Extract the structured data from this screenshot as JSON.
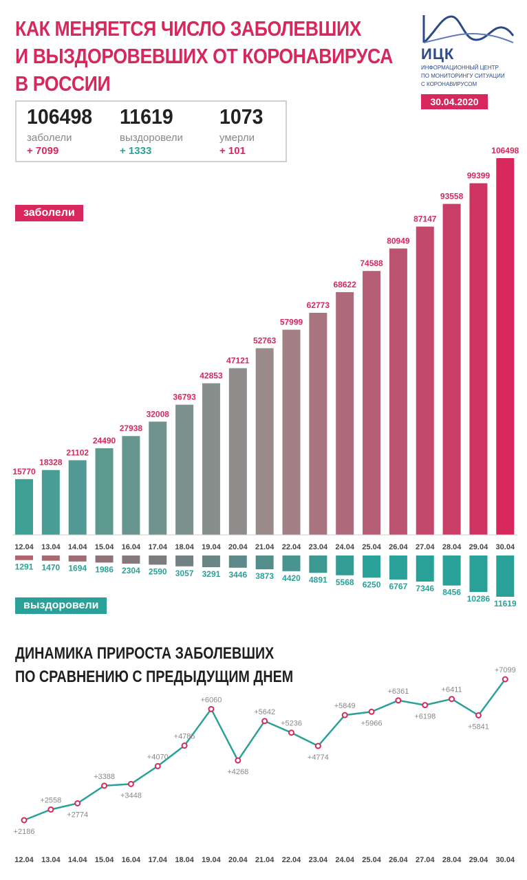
{
  "title": {
    "line1": "КАК МЕНЯЕТСЯ ЧИСЛО ЗАБОЛЕВШИХ",
    "line2": "И ВЫЗДОРОВЕВШИХ ОТ КОРОНАВИРУСА",
    "line3": "В РОССИИ"
  },
  "logo": {
    "name": "ИЦК",
    "sub1": "информационный центр",
    "sub2": "по мониторингу ситуации",
    "sub3": "с коронавирусом",
    "date": "30.04.2020"
  },
  "stats": {
    "sick": {
      "value": "106498",
      "label": "заболели",
      "delta": "+ 7099"
    },
    "recovered": {
      "value": "11619",
      "label": "выздоровели",
      "delta": "+ 1333"
    },
    "died": {
      "value": "1073",
      "label": "умерли",
      "delta": "+ 101"
    }
  },
  "tags": {
    "sick": "заболели",
    "recovered": "выздоровели"
  },
  "section2": {
    "line1": "ДИНАМИКА ПРИРОСТА ЗАБОЛЕВШИХ",
    "line2": "ПО СРАВНЕНИЮ С ПРЕДЫДУЩИМ ДНЕМ"
  },
  "colors": {
    "accent": "#d6285c",
    "teal": "#2aa198",
    "recovered_bar": "#b0656d",
    "line": "#2aa198",
    "dot": "#d6285c"
  },
  "chart_data": [
    {
      "type": "bar",
      "categories": [
        "12.04",
        "13.04",
        "14.04",
        "15.04",
        "16.04",
        "17.04",
        "18.04",
        "19.04",
        "20.04",
        "21.04",
        "22.04",
        "23.04",
        "24.04",
        "25.04",
        "26.04",
        "27.04",
        "28.04",
        "29.04",
        "30.04"
      ],
      "series": [
        {
          "name": "заболели",
          "values": [
            15770,
            18328,
            21102,
            24490,
            27938,
            32008,
            36793,
            42853,
            47121,
            52763,
            57999,
            62773,
            68622,
            74588,
            80949,
            87147,
            93558,
            99399,
            106498
          ]
        },
        {
          "name": "выздоровели",
          "values": [
            1291,
            1470,
            1694,
            1986,
            2304,
            2590,
            3057,
            3291,
            3446,
            3873,
            4420,
            4891,
            5568,
            6250,
            6767,
            7346,
            8456,
            10286,
            11619
          ]
        }
      ]
    },
    {
      "type": "line",
      "title": "ДИНАМИКА ПРИРОСТА ЗАБОЛЕВШИХ ПО СРАВНЕНИЮ С ПРЕДЫДУЩИМ ДНЕМ",
      "categories": [
        "12.04",
        "13.04",
        "14.04",
        "15.04",
        "16.04",
        "17.04",
        "18.04",
        "19.04",
        "20.04",
        "21.04",
        "22.04",
        "23.04",
        "24.04",
        "25.04",
        "26.04",
        "27.04",
        "28.04",
        "29.04",
        "30.04"
      ],
      "values": [
        2186,
        2558,
        2774,
        3388,
        3448,
        4070,
        4785,
        6060,
        4268,
        5642,
        5236,
        4774,
        5849,
        5966,
        6361,
        6198,
        6411,
        5841,
        7099
      ],
      "labels": [
        "+2186",
        "+2558",
        "+2774",
        "+3388",
        "+3448",
        "+4070",
        "+4785",
        "+6060",
        "+4268",
        "+5642",
        "+5236",
        "+4774",
        "+5849",
        "+5966",
        "+6361",
        "+6198",
        "+6411",
        "+5841",
        "+7099"
      ],
      "label_side": [
        "below",
        "above",
        "below",
        "above",
        "below",
        "above",
        "above",
        "above",
        "below",
        "above",
        "above",
        "below",
        "above",
        "below",
        "above",
        "below",
        "above",
        "below",
        "above"
      ]
    }
  ]
}
